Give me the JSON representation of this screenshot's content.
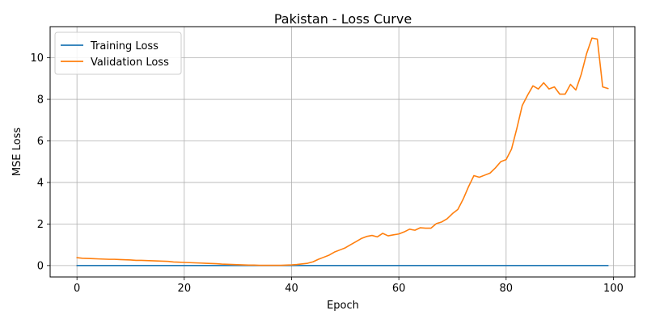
{
  "chart_data": {
    "type": "line",
    "title": "Pakistan - Loss Curve",
    "xlabel": "Epoch",
    "ylabel": "MSE Loss",
    "xlim": [
      -5,
      104
    ],
    "ylim": [
      -0.55,
      11.5
    ],
    "xticks": [
      0,
      20,
      40,
      60,
      80,
      100
    ],
    "yticks": [
      0,
      2,
      4,
      6,
      8,
      10
    ],
    "xtick_labels": [
      "0",
      "20",
      "40",
      "60",
      "80",
      "100"
    ],
    "ytick_labels": [
      "0",
      "2",
      "4",
      "6",
      "8",
      "10"
    ],
    "grid": true,
    "legend_position": "top-left",
    "series": [
      {
        "name": "Training Loss",
        "color": "#1f77b4",
        "x": [
          0,
          99
        ],
        "values": [
          0.0,
          0.0
        ]
      },
      {
        "name": "Validation Loss",
        "color": "#ff7f0e",
        "x": [
          0,
          1,
          2,
          3,
          4,
          5,
          6,
          7,
          8,
          9,
          10,
          11,
          12,
          13,
          14,
          15,
          16,
          17,
          18,
          19,
          20,
          21,
          22,
          23,
          24,
          25,
          26,
          27,
          28,
          29,
          30,
          31,
          32,
          33,
          34,
          35,
          36,
          37,
          38,
          39,
          40,
          41,
          42,
          43,
          44,
          45,
          46,
          47,
          48,
          49,
          50,
          51,
          52,
          53,
          54,
          55,
          56,
          57,
          58,
          59,
          60,
          61,
          62,
          63,
          64,
          65,
          66,
          67,
          68,
          69,
          70,
          71,
          72,
          73,
          74,
          75,
          76,
          77,
          78,
          79,
          80,
          81,
          82,
          83,
          84,
          85,
          86,
          87,
          88,
          89,
          90,
          91,
          92,
          93,
          94,
          95,
          96,
          97,
          98,
          99
        ],
        "values": [
          0.38,
          0.35,
          0.34,
          0.33,
          0.32,
          0.31,
          0.3,
          0.3,
          0.29,
          0.28,
          0.27,
          0.25,
          0.25,
          0.24,
          0.23,
          0.22,
          0.21,
          0.2,
          0.17,
          0.16,
          0.15,
          0.14,
          0.13,
          0.12,
          0.11,
          0.1,
          0.09,
          0.07,
          0.06,
          0.05,
          0.04,
          0.03,
          0.02,
          0.02,
          0.01,
          0.01,
          0.01,
          0.01,
          0.01,
          0.02,
          0.03,
          0.05,
          0.08,
          0.11,
          0.18,
          0.3,
          0.4,
          0.5,
          0.65,
          0.75,
          0.85,
          1.0,
          1.15,
          1.3,
          1.4,
          1.45,
          1.38,
          1.55,
          1.43,
          1.48,
          1.52,
          1.62,
          1.75,
          1.7,
          1.82,
          1.8,
          1.8,
          2.02,
          2.1,
          2.25,
          2.5,
          2.7,
          3.2,
          3.8,
          4.33,
          4.25,
          4.35,
          4.45,
          4.7,
          5.0,
          5.1,
          5.6,
          6.6,
          7.7,
          8.2,
          8.65,
          8.5,
          8.8,
          8.5,
          8.6,
          8.25,
          8.25,
          8.72,
          8.45,
          9.2,
          10.2,
          10.95,
          10.9,
          8.6,
          8.52
        ]
      }
    ]
  }
}
